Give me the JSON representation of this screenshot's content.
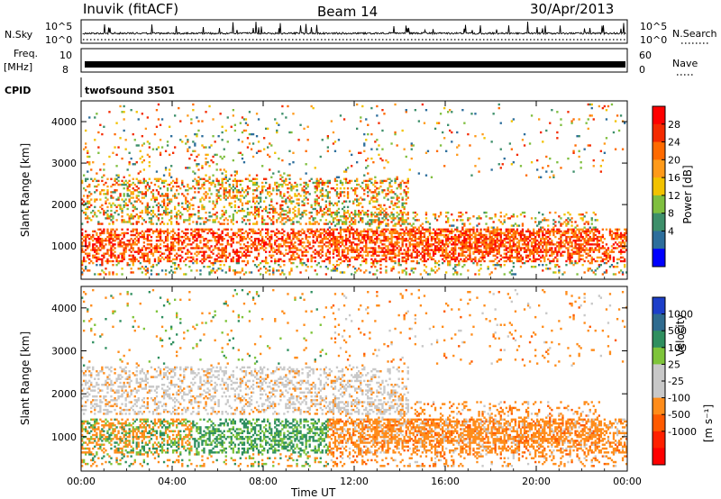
{
  "header": {
    "station": "Inuvik (fitACF)",
    "beam": "Beam 14",
    "date": "30/Apr/2013"
  },
  "panels": {
    "nsky_label": "N.Sky",
    "nsky_ticks": [
      "10^5",
      "10^0"
    ],
    "nsearch_label": "N.Search",
    "nsearch_ticks": [
      "10^5",
      "10^0"
    ],
    "freq_label_top": "Freq.",
    "freq_label_bottom": "[MHz]",
    "freq_ticks": [
      "10",
      "8"
    ],
    "nave_label": "Nave",
    "nave_ticks": [
      "60",
      "0"
    ],
    "cpid_label": "CPID",
    "cpid_value": "twofsound 3501"
  },
  "colors": {
    "power_scale": [
      "#0000ff",
      "#2d6e9c",
      "#3d8f6a",
      "#7fbf3f",
      "#f2c200",
      "#ff9a1a",
      "#ff6a00",
      "#f42a00",
      "#ff0000"
    ],
    "velocity_scale": [
      "#1d3fc9",
      "#2f6b8f",
      "#2f8f5f",
      "#7ec43a",
      "#c8c8c8",
      "#c8c8c8",
      "#ff8c1a",
      "#ff5a00",
      "#ff2000",
      "#ff0000"
    ]
  },
  "chart_data": [
    {
      "type": "heatmap",
      "name": "Power",
      "x_ticks": [
        "00:00",
        "04:00",
        "08:00",
        "12:00",
        "16:00",
        "20:00",
        "00:00"
      ],
      "xlabel": "Time UT",
      "ylabel": "Slant Range [km]",
      "y_ticks": [
        "1000",
        "2000",
        "3000",
        "4000"
      ],
      "ylim": [
        200,
        4500
      ],
      "colorbar_label": "Power [dB]",
      "colorbar_ticks": [
        "28",
        "24",
        "20",
        "16",
        "12",
        "8",
        "4"
      ],
      "colorbar_range": [
        0,
        32
      ]
    },
    {
      "type": "heatmap",
      "name": "Velocity",
      "x_ticks": [
        "00:00",
        "04:00",
        "08:00",
        "12:00",
        "16:00",
        "20:00",
        "00:00"
      ],
      "xlabel": "Time UT",
      "ylabel": "Slant Range [km]",
      "y_ticks": [
        "1000",
        "2000",
        "3000",
        "4000"
      ],
      "ylim": [
        200,
        4500
      ],
      "colorbar_label": "Velocity",
      "colorbar_unit": "[m s⁻¹]",
      "colorbar_ticks": [
        "1000",
        "500",
        "100",
        "25",
        "-25",
        "-100",
        "-500",
        "-1000"
      ]
    }
  ]
}
